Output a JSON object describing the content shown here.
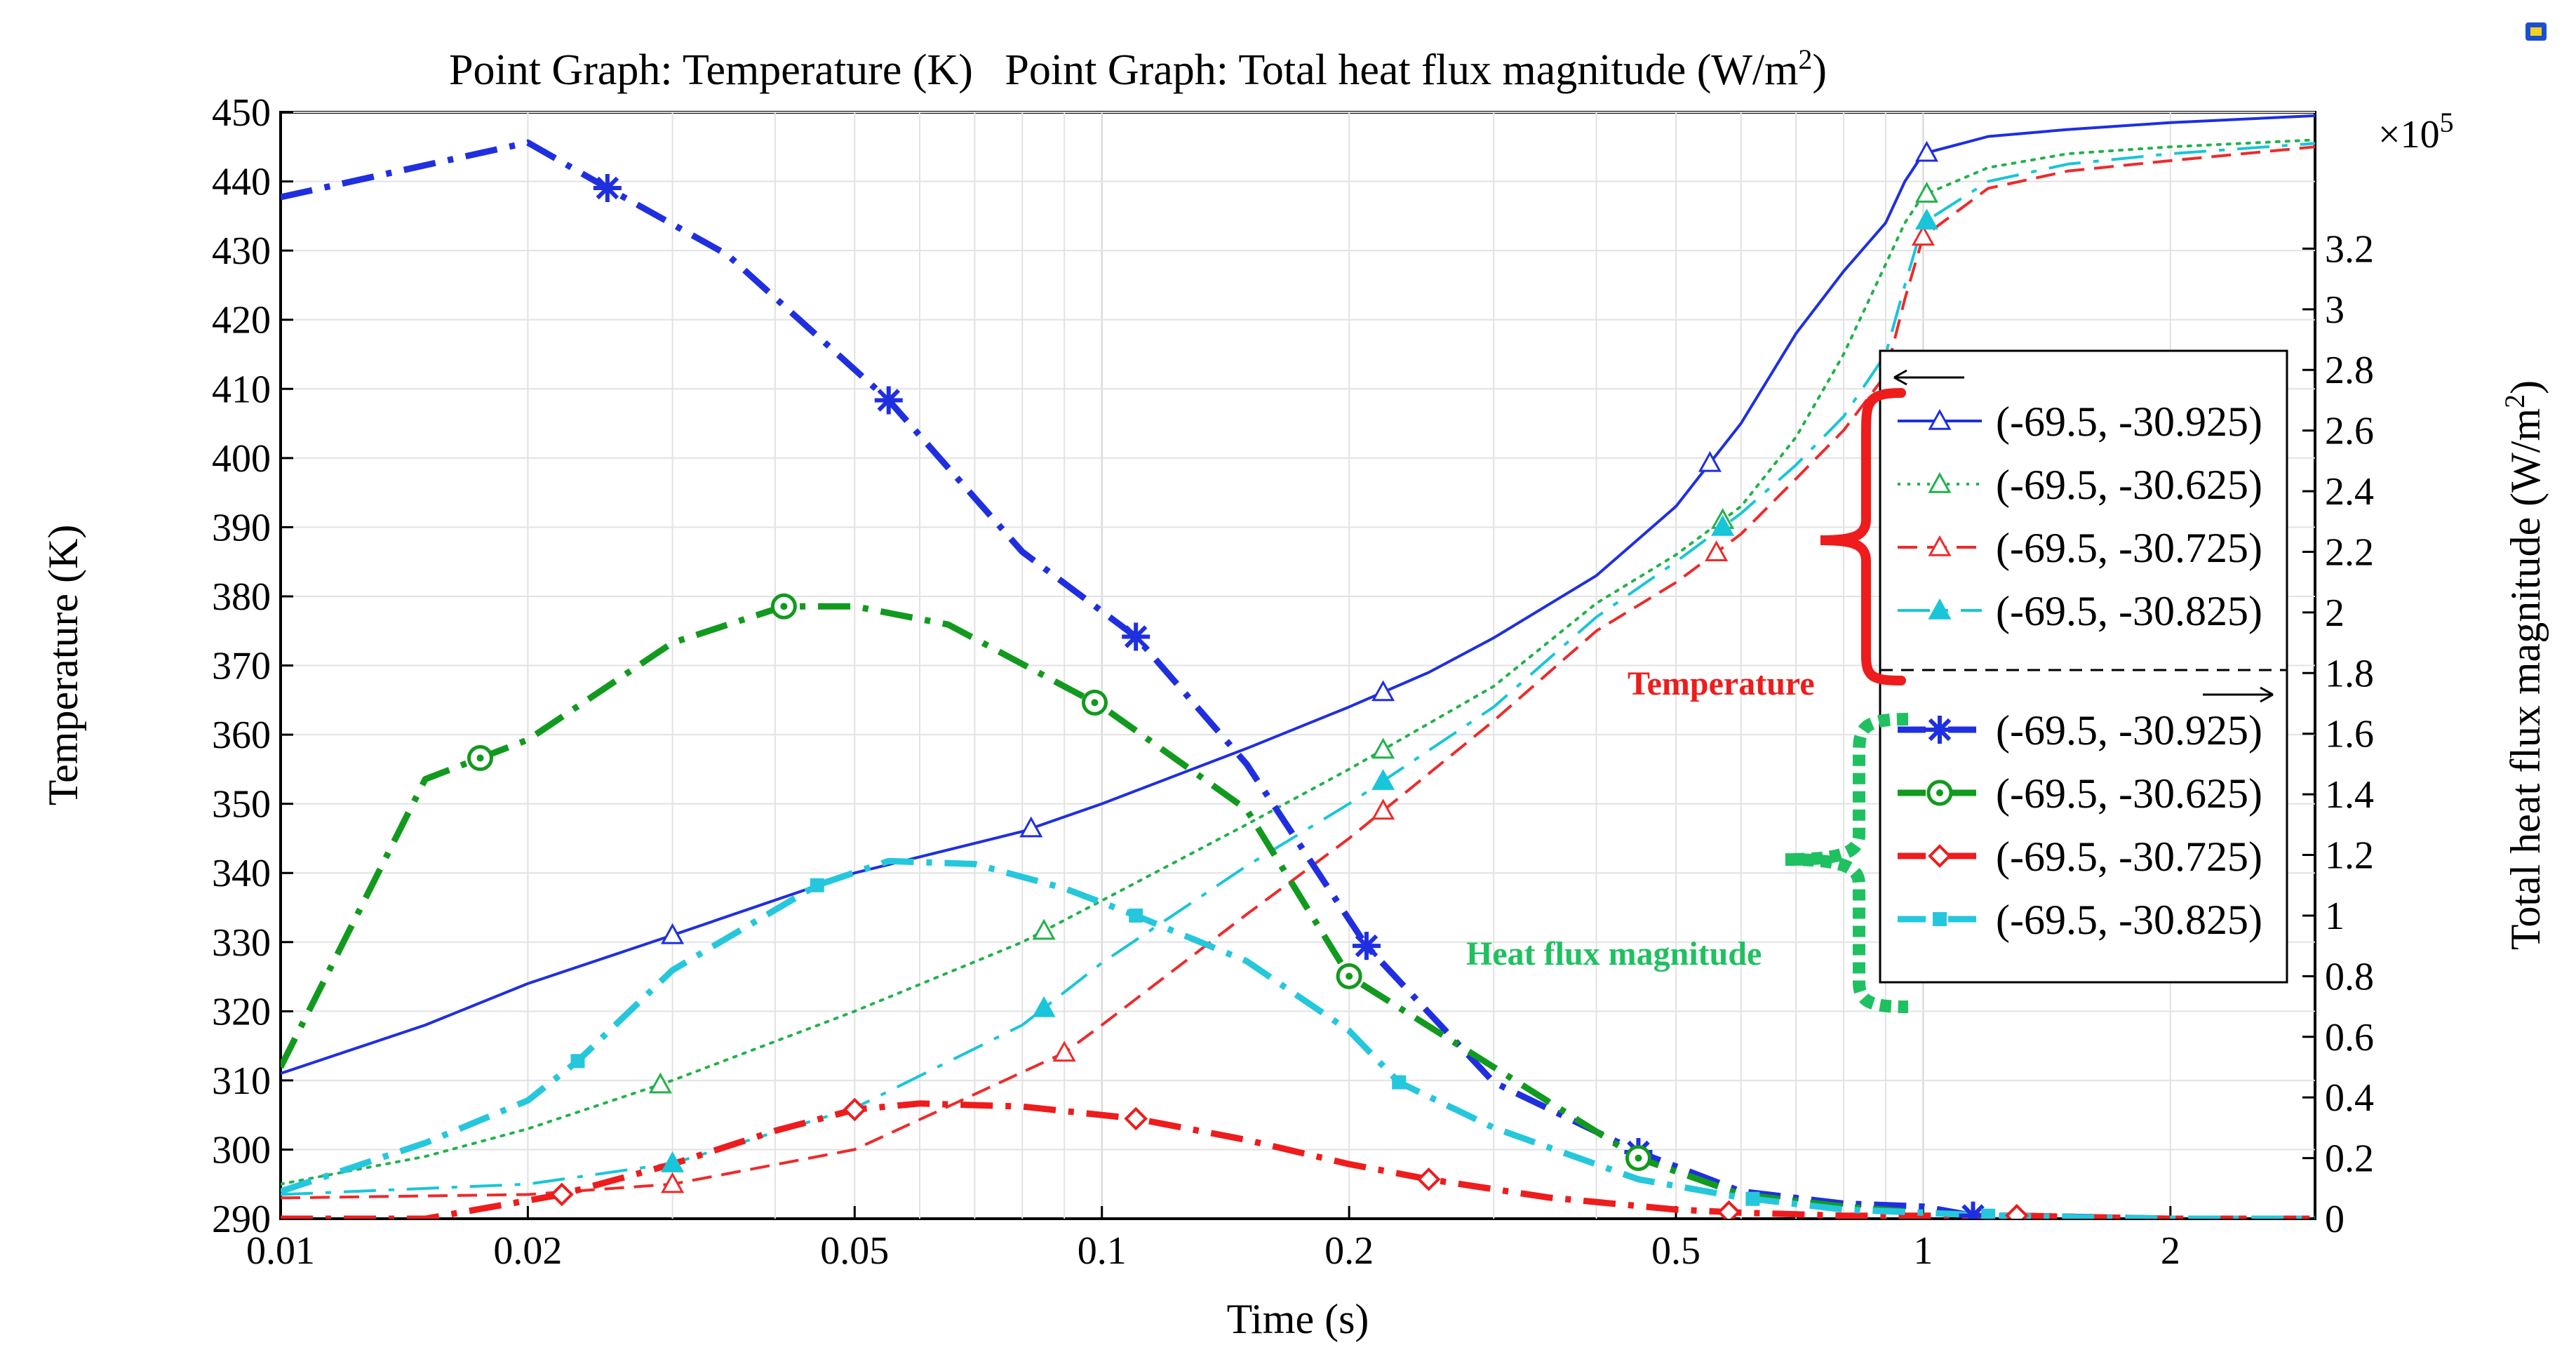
{
  "chart_data": {
    "type": "line",
    "title_parts": [
      "Point Graph: Temperature (K)",
      "Point Graph: Total heat flux magnitude (W/m",
      "2",
      ")"
    ],
    "xlabel": "Time (s)",
    "ylabel": "Temperature (K)",
    "y2label_parts": [
      "Total heat flux magnitude (W/m",
      "2",
      ")"
    ],
    "x_scale": "log",
    "xlim": [
      0.01,
      3
    ],
    "ylim": [
      290,
      450
    ],
    "y2lim": [
      0,
      3.65
    ],
    "y2_multiplier": "×10",
    "y2_multiplier_exp": "5",
    "x_ticks": [
      0.01,
      0.02,
      0.05,
      0.1,
      0.2,
      0.5,
      1,
      2
    ],
    "x_tick_labels": [
      "0.01",
      "0.02",
      "0.05",
      "0.1",
      "0.2",
      "0.5",
      "1",
      "2"
    ],
    "y_ticks": [
      290,
      300,
      310,
      320,
      330,
      340,
      350,
      360,
      370,
      380,
      390,
      400,
      410,
      420,
      430,
      440,
      450
    ],
    "y_tick_labels": [
      "290",
      "300",
      "310",
      "320",
      "330",
      "340",
      "350",
      "360",
      "370",
      "380",
      "390",
      "400",
      "410",
      "420",
      "430",
      "440",
      "450"
    ],
    "y2_ticks": [
      0,
      0.2,
      0.4,
      0.6,
      0.8,
      1,
      1.2,
      1.4,
      1.6,
      1.8,
      2,
      2.2,
      2.4,
      2.6,
      2.8,
      3,
      3.2
    ],
    "y2_tick_labels": [
      "0",
      "0.2",
      "0.4",
      "0.6",
      "0.8",
      "1",
      "1.2",
      "1.4",
      "1.6",
      "1.8",
      "2",
      "2.2",
      "2.4",
      "2.6",
      "2.8",
      "3",
      "3.2"
    ],
    "grid": true,
    "temperature_series": [
      {
        "name": "(-69.5, -30.925)",
        "color": "#1f2fe0",
        "style": "solid",
        "marker": "triangle",
        "x": [
          0.01,
          0.015,
          0.02,
          0.03,
          0.05,
          0.08,
          0.1,
          0.15,
          0.2,
          0.25,
          0.3,
          0.4,
          0.5,
          0.6,
          0.7,
          0.8,
          0.9,
          0.95,
          1,
          1.2,
          1.5,
          2,
          3
        ],
        "y": [
          311,
          318,
          324,
          331,
          340,
          346,
          350,
          358,
          364,
          369,
          374,
          383,
          393,
          405,
          418,
          427,
          434,
          440,
          444,
          446.5,
          447.5,
          448.5,
          449.5
        ],
        "marker_x": [
          0.03,
          0.082,
          0.22,
          0.55,
          1.01
        ]
      },
      {
        "name": "(-69.5, -30.625)",
        "color": "#22b24c",
        "style": "dotted",
        "marker": "triangle",
        "x": [
          0.01,
          0.015,
          0.02,
          0.03,
          0.05,
          0.08,
          0.1,
          0.15,
          0.2,
          0.3,
          0.4,
          0.5,
          0.6,
          0.7,
          0.8,
          0.9,
          0.95,
          1,
          1.2,
          1.5,
          2,
          3
        ],
        "y": [
          295,
          299,
          303,
          310,
          320,
          330,
          336,
          347,
          355,
          367,
          379,
          386,
          393,
          403,
          415,
          428,
          434,
          438,
          442,
          444,
          445,
          446
        ],
        "marker_x": [
          0.029,
          0.085,
          0.22,
          0.57,
          1.01
        ]
      },
      {
        "name": "(-69.5, -30.725)",
        "color": "#ee2a2a",
        "style": "dashed",
        "marker": "triangle",
        "x": [
          0.01,
          0.02,
          0.03,
          0.05,
          0.07,
          0.09,
          0.1,
          0.15,
          0.2,
          0.3,
          0.4,
          0.5,
          0.6,
          0.7,
          0.8,
          0.9,
          0.95,
          1,
          1.2,
          1.5,
          2,
          3
        ],
        "y": [
          293,
          293.5,
          295,
          300,
          308,
          314,
          318,
          334,
          345,
          362,
          375,
          382,
          389,
          397,
          404,
          412,
          423,
          432,
          439,
          441.5,
          443,
          445
        ],
        "marker_x": [
          0.03,
          0.09,
          0.22,
          0.56,
          1.0
        ]
      },
      {
        "name": "(-69.5, -30.825)",
        "color": "#19c5d8",
        "style": "dashdot",
        "marker": "triangle-filled",
        "x": [
          0.01,
          0.02,
          0.03,
          0.05,
          0.08,
          0.1,
          0.15,
          0.2,
          0.3,
          0.4,
          0.5,
          0.6,
          0.7,
          0.8,
          0.9,
          0.95,
          1,
          1.2,
          1.5,
          2,
          3
        ],
        "y": [
          293.5,
          295,
          298,
          306,
          318,
          327,
          341,
          350,
          364,
          377,
          385,
          392,
          399,
          406,
          415,
          425,
          434,
          440,
          442.5,
          444,
          445.5
        ],
        "marker_x": [
          0.03,
          0.085,
          0.22,
          0.57,
          1.01
        ]
      }
    ],
    "heat_flux_series": [
      {
        "name": "(-69.5, -30.925)",
        "color": "#1f2fe0",
        "style": "dashdot",
        "marker": "asterisk",
        "x": [
          0.01,
          0.02,
          0.025,
          0.035,
          0.055,
          0.08,
          0.11,
          0.15,
          0.21,
          0.3,
          0.45,
          0.6,
          0.8,
          1.0,
          1.15,
          1.3,
          2,
          3
        ],
        "y": [
          3.37,
          3.55,
          3.4,
          3.18,
          2.7,
          2.2,
          1.92,
          1.5,
          0.9,
          0.45,
          0.22,
          0.09,
          0.05,
          0.04,
          0.01,
          0.01,
          0.0,
          0.0
        ],
        "marker_x": [
          0.025,
          0.055,
          0.11,
          0.21,
          0.45,
          1.15
        ]
      },
      {
        "name": "(-69.5, -30.625)",
        "color": "#119a1e",
        "style": "dashdot",
        "marker": "circle",
        "x": [
          0.01,
          0.015,
          0.02,
          0.03,
          0.041,
          0.05,
          0.065,
          0.1,
          0.15,
          0.2,
          0.3,
          0.45,
          0.6,
          0.8,
          1.0,
          1.2,
          2,
          3
        ],
        "y": [
          0.5,
          1.45,
          1.58,
          1.9,
          2.02,
          2.02,
          1.96,
          1.69,
          1.35,
          0.8,
          0.5,
          0.2,
          0.08,
          0.04,
          0.02,
          0.01,
          0.0,
          0.0
        ],
        "marker_x": [
          0.0175,
          0.041,
          0.098,
          0.2,
          0.45
        ]
      },
      {
        "name": "(-69.5, -30.725)",
        "color": "#ee1c1c",
        "style": "dashdot",
        "marker": "diamond",
        "x": [
          0.01,
          0.015,
          0.022,
          0.03,
          0.04,
          0.05,
          0.06,
          0.08,
          0.11,
          0.15,
          0.2,
          0.25,
          0.35,
          0.5,
          0.6,
          0.8,
          1.0,
          1.3,
          2,
          3
        ],
        "y": [
          0.0,
          0.0,
          0.08,
          0.18,
          0.29,
          0.36,
          0.38,
          0.37,
          0.33,
          0.26,
          0.18,
          0.13,
          0.07,
          0.03,
          0.02,
          0.01,
          0.01,
          0.01,
          0.0,
          0.0
        ],
        "marker_x": [
          0.022,
          0.05,
          0.11,
          0.25,
          0.58,
          1.3
        ]
      },
      {
        "name": "(-69.5, -30.825)",
        "color": "#25c7dc",
        "style": "dashdot",
        "marker": "square",
        "x": [
          0.01,
          0.015,
          0.02,
          0.023,
          0.03,
          0.045,
          0.055,
          0.07,
          0.09,
          0.11,
          0.15,
          0.2,
          0.23,
          0.3,
          0.45,
          0.6,
          0.8,
          1.0,
          1.2,
          2,
          3
        ],
        "y": [
          0.09,
          0.25,
          0.39,
          0.52,
          0.82,
          1.1,
          1.18,
          1.17,
          1.09,
          1.0,
          0.85,
          0.62,
          0.45,
          0.3,
          0.13,
          0.07,
          0.03,
          0.02,
          0.01,
          0.0,
          0.0
        ],
        "marker_x": [
          0.023,
          0.045,
          0.11,
          0.23,
          0.62,
          1.2
        ]
      }
    ],
    "annotations": {
      "temperature_label": "Temperature",
      "heat_flux_label": "Heat flux magnitude"
    },
    "legend_position": "right"
  }
}
